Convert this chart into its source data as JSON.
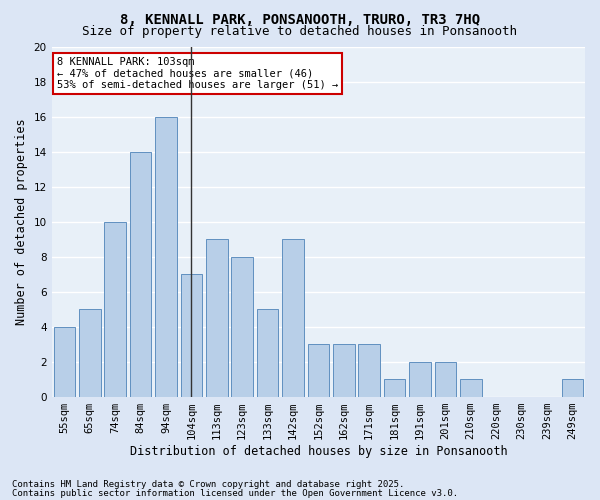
{
  "title_line1": "8, KENNALL PARK, PONSANOOTH, TRURO, TR3 7HQ",
  "title_line2": "Size of property relative to detached houses in Ponsanooth",
  "xlabel": "Distribution of detached houses by size in Ponsanooth",
  "ylabel": "Number of detached properties",
  "categories": [
    "55sqm",
    "65sqm",
    "74sqm",
    "84sqm",
    "94sqm",
    "104sqm",
    "113sqm",
    "123sqm",
    "133sqm",
    "142sqm",
    "152sqm",
    "162sqm",
    "171sqm",
    "181sqm",
    "191sqm",
    "201sqm",
    "210sqm",
    "220sqm",
    "230sqm",
    "239sqm",
    "249sqm"
  ],
  "values": [
    4,
    5,
    10,
    14,
    16,
    7,
    9,
    8,
    5,
    9,
    3,
    3,
    3,
    1,
    2,
    2,
    1,
    0,
    0,
    0,
    1
  ],
  "bar_color": "#b8cfe8",
  "bar_edge_color": "#6090c0",
  "highlight_bar_index": 5,
  "highlight_line_color": "#333333",
  "ylim": [
    0,
    20
  ],
  "yticks": [
    0,
    2,
    4,
    6,
    8,
    10,
    12,
    14,
    16,
    18,
    20
  ],
  "annotation_box_text": "8 KENNALL PARK: 103sqm\n← 47% of detached houses are smaller (46)\n53% of semi-detached houses are larger (51) →",
  "annotation_box_color": "#ffffff",
  "annotation_box_edge_color": "#cc0000",
  "footer_line1": "Contains HM Land Registry data © Crown copyright and database right 2025.",
  "footer_line2": "Contains public sector information licensed under the Open Government Licence v3.0.",
  "bg_color": "#dce6f5",
  "plot_bg_color": "#e8f0f8",
  "grid_color": "#ffffff",
  "title_fontsize": 10,
  "subtitle_fontsize": 9,
  "axis_label_fontsize": 8.5,
  "tick_fontsize": 7.5,
  "annotation_fontsize": 7.5,
  "footer_fontsize": 6.5
}
